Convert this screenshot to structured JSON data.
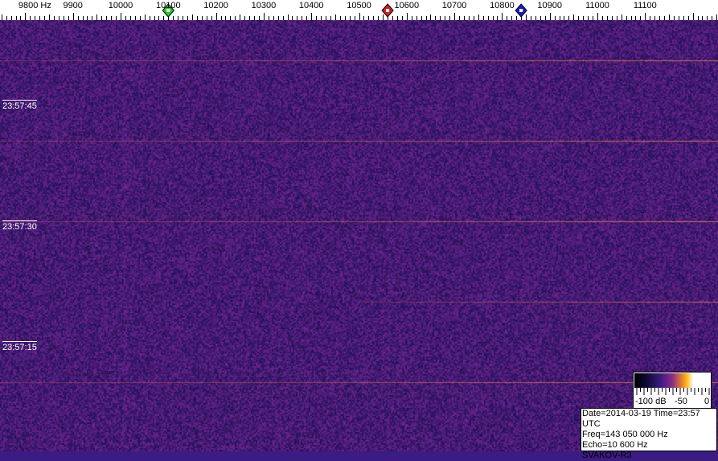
{
  "frequency_axis": {
    "unit": "Hz",
    "ticks": [
      "9800 Hz",
      "9900",
      "10000",
      "10100",
      "10200",
      "10300",
      "10400",
      "10500",
      "10600",
      "10700",
      "10800",
      "10900",
      "11000",
      "11100"
    ],
    "tick_values": [
      9800,
      9900,
      10000,
      10100,
      10200,
      10300,
      10400,
      10500,
      10600,
      10700,
      10800,
      10900,
      11000,
      11100
    ]
  },
  "markers": [
    {
      "name": "green-marker",
      "freq": 10100,
      "color": "#22cc22"
    },
    {
      "name": "red-marker",
      "freq": 10560,
      "color": "#cc2222"
    },
    {
      "name": "blue-marker",
      "freq": 10840,
      "color": "#1a1acc"
    }
  ],
  "time_labels": [
    "23:57:45",
    "23:57:30",
    "23:57:15"
  ],
  "legend": {
    "min_label": "-100 dB",
    "mid_label": "-50",
    "max_label": "0"
  },
  "info": {
    "line1": "Date=2014-03-19 Time=23:57 UTC",
    "line2": "Freq=143 050 000 Hz",
    "line3": "Echo=10 600 Hz",
    "line4": "SVAKOV-R3"
  },
  "colors": {
    "noise_base": "#3a1c82",
    "line": "#e07040"
  }
}
